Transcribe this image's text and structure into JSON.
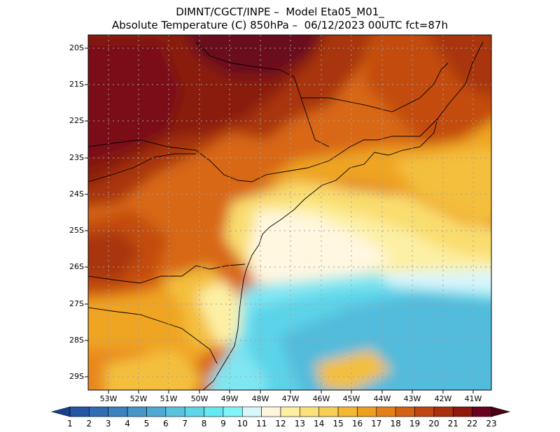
{
  "header": {
    "line1": "DIMNT/CGCT/INPE –  Model Eta05_M01_",
    "line2": "Absolute Temperature (C) 850hPa –  06/12/2023 00UTC fct=87h"
  },
  "axes": {
    "lat_labels": [
      "20S",
      "21S",
      "22S",
      "23S",
      "24S",
      "25S",
      "26S",
      "27S",
      "28S",
      "29S"
    ],
    "lon_labels": [
      "53W",
      "52W",
      "51W",
      "50W",
      "49W",
      "48W",
      "47W",
      "46W",
      "45W",
      "44W",
      "43W",
      "42W",
      "41W"
    ]
  },
  "colorbar": {
    "labels": [
      "1",
      "2",
      "3",
      "4",
      "5",
      "6",
      "7",
      "8",
      "9",
      "10",
      "11",
      "12",
      "13",
      "14",
      "15",
      "16",
      "17",
      "18",
      "19",
      "20",
      "21",
      "22",
      "23"
    ],
    "colors": [
      "#1b3f8e",
      "#2456a6",
      "#2f6db5",
      "#3b82c0",
      "#4596c9",
      "#4eaad3",
      "#57c3df",
      "#5ed6e8",
      "#66e8f2",
      "#7ff5fa",
      "#d8f7fb",
      "#fff4dc",
      "#fdeea0",
      "#fce17a",
      "#f8cf55",
      "#f2b733",
      "#ee9f1e",
      "#e3801a",
      "#d46214",
      "#c14710",
      "#a9300c",
      "#8d1a0a",
      "#6a0320",
      "#4a0012"
    ]
  },
  "map_colors": {
    "dark_maroon": "#6b0a1f",
    "maroon": "#8a1c0d",
    "dark_red": "#a8340d",
    "red_orange": "#c34c10",
    "orange": "#d86816",
    "light_orange": "#e8871c",
    "amber": "#efa420",
    "yellow_orange": "#f4bf3c",
    "yellow": "#f9dd6e",
    "pale_yellow": "#fdf0a4",
    "cream": "#fff7e0",
    "pale_cyan": "#d8f6fb",
    "cyan": "#7fe6f2",
    "sky_blue": "#5cd3e8",
    "light_blue": "#52bbdb"
  }
}
